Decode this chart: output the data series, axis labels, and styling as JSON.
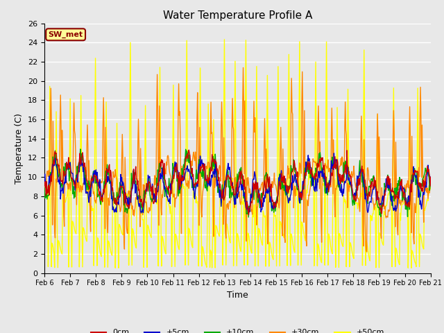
{
  "title": "Water Temperature Profile A",
  "xlabel": "Time",
  "ylabel": "Temperature (C)",
  "ylim": [
    0,
    26
  ],
  "annotation_text": "SW_met",
  "annotation_bg": "#FFFF99",
  "annotation_border": "#8B0000",
  "annotation_text_color": "#8B0000",
  "series_colors": {
    "0cm": "#CC0000",
    "+5cm": "#0000CC",
    "+10cm": "#00AA00",
    "+30cm": "#FF8800",
    "+50cm": "#FFFF00"
  },
  "series_linewidth": 1.0,
  "bg_color": "#E8E8E8",
  "grid_color": "#FFFFFF",
  "tick_labels": [
    "Feb 6",
    "Feb 7",
    "Feb 8",
    "Feb 9",
    "Feb 10",
    "Feb 11",
    "Feb 12",
    "Feb 13",
    "Feb 14",
    "Feb 15",
    "Feb 16",
    "Feb 17",
    "Feb 18",
    "Feb 19",
    "Feb 20",
    "Feb 21"
  ],
  "yticks": [
    0,
    2,
    4,
    6,
    8,
    10,
    12,
    14,
    16,
    18,
    20,
    22,
    24,
    26
  ],
  "figsize": [
    6.4,
    4.8
  ],
  "dpi": 100
}
